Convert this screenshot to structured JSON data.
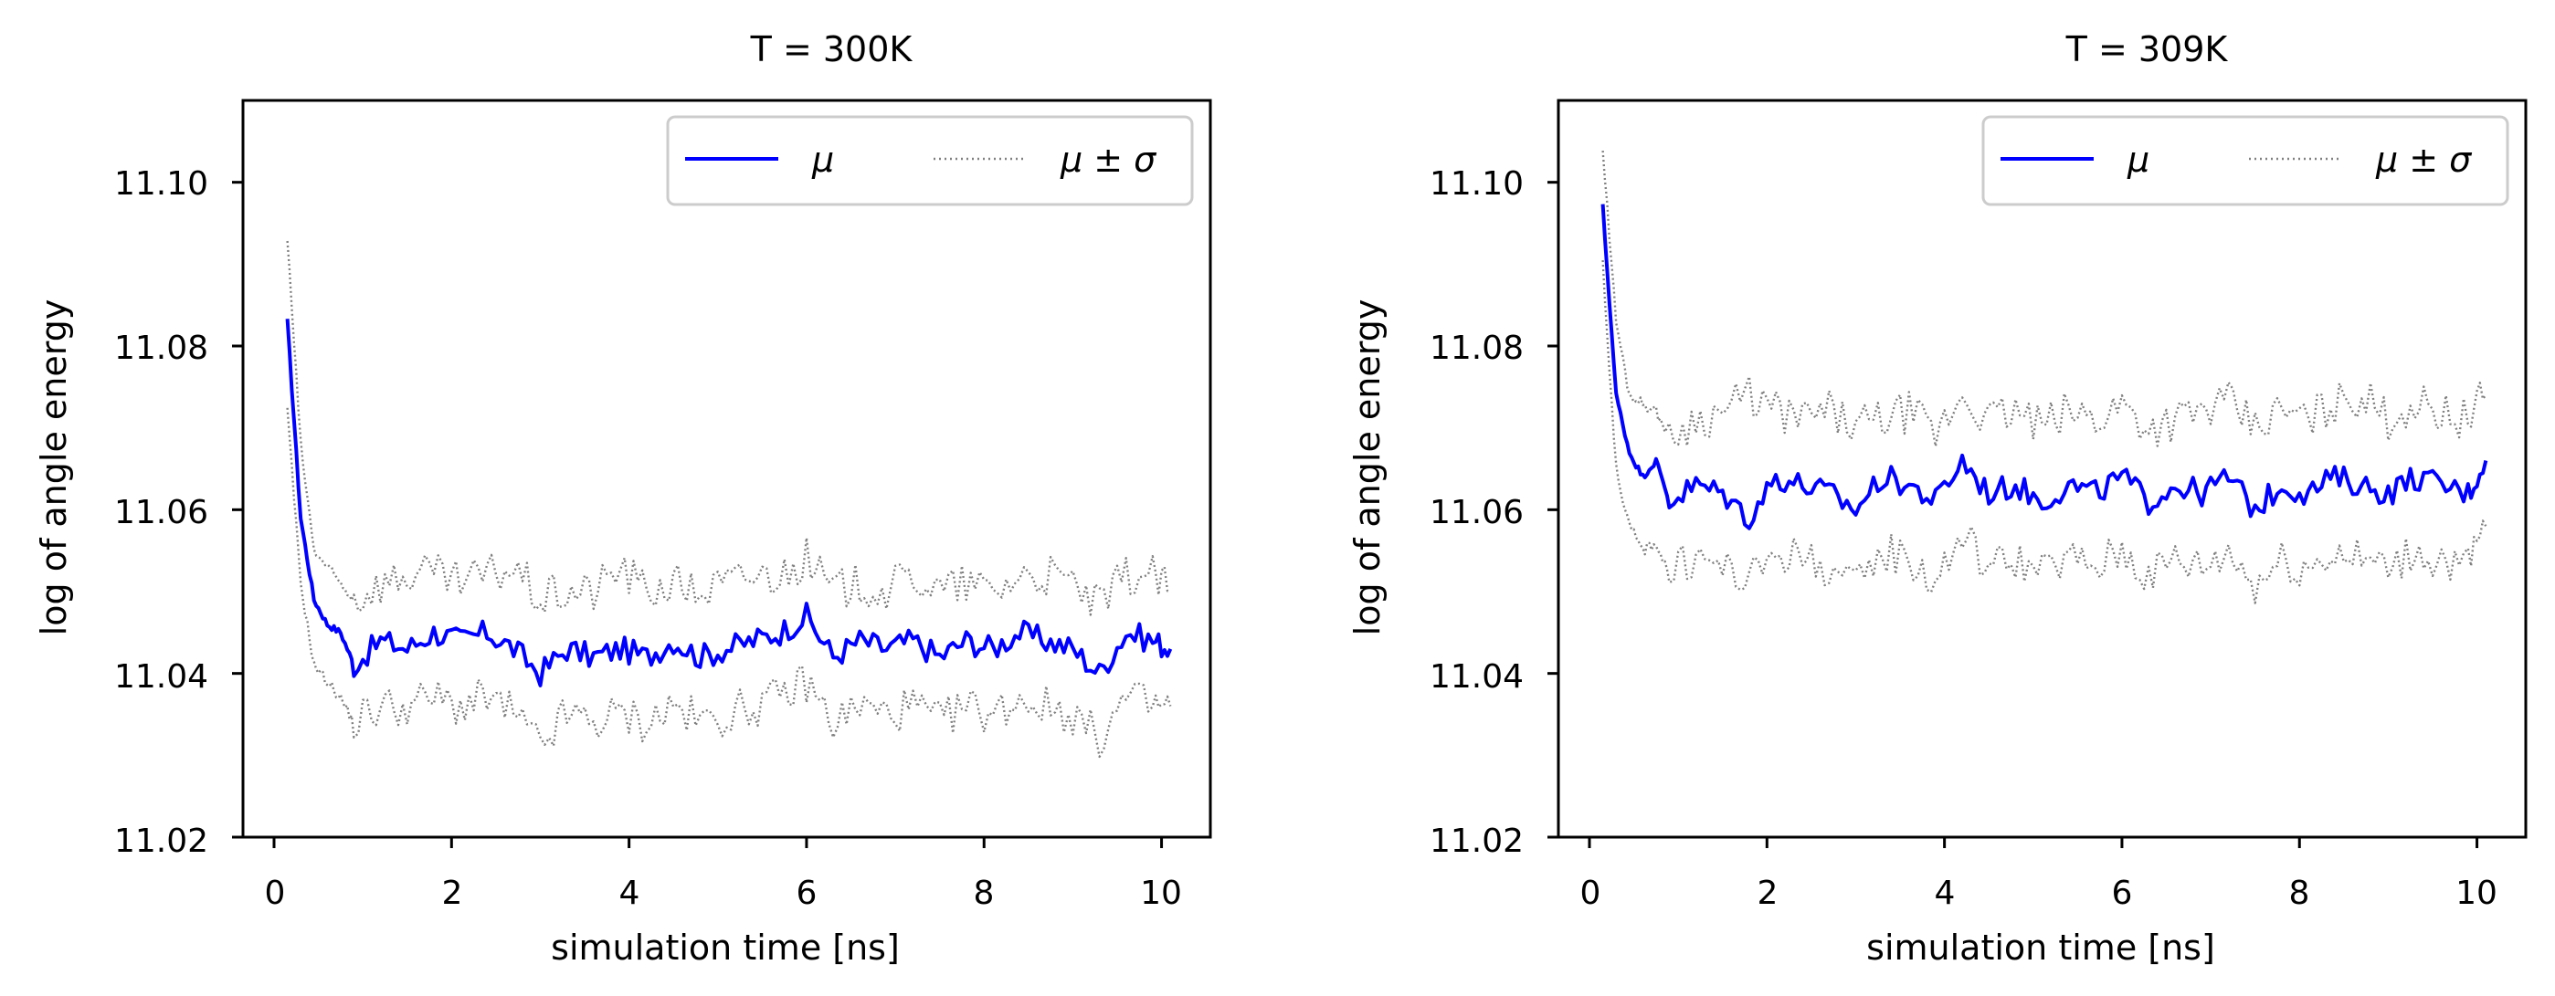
{
  "figure": {
    "series_colors": {
      "mean": "#0000ff",
      "band": "#808080"
    },
    "legend_symbols": {
      "mean": "μ",
      "band": "μ ± σ"
    }
  },
  "chart_data": [
    {
      "type": "line",
      "title": "T = 300K",
      "xlabel": "simulation time [ns]",
      "ylabel": "log of angle energy",
      "xlim": [
        -0.35,
        10.55
      ],
      "ylim": [
        11.02,
        11.11
      ],
      "xticks": [
        0,
        2,
        4,
        6,
        8,
        10
      ],
      "xtick_labels": [
        "0",
        "2",
        "4",
        "6",
        "8",
        "10"
      ],
      "yticks": [
        11.02,
        11.04,
        11.06,
        11.08,
        11.1
      ],
      "ytick_labels": [
        "11.02",
        "11.04",
        "11.06",
        "11.08",
        "11.10"
      ],
      "legend": {
        "location": "top-right",
        "entries": [
          "μ",
          "μ ± σ"
        ]
      },
      "x": [
        0.15,
        0.3,
        0.45,
        0.6,
        0.75,
        0.9,
        1.2,
        1.5,
        1.8,
        2.1,
        2.4,
        2.7,
        3.0,
        3.3,
        3.6,
        3.9,
        4.2,
        4.5,
        4.8,
        5.1,
        5.4,
        5.7,
        6.0,
        6.3,
        6.6,
        6.9,
        7.2,
        7.5,
        7.8,
        8.1,
        8.4,
        8.7,
        9.0,
        9.3,
        9.6,
        9.9,
        10.1
      ],
      "series": [
        {
          "name": "μ",
          "style": "solid",
          "values": [
            11.083,
            11.059,
            11.049,
            11.046,
            11.045,
            11.041,
            11.044,
            11.043,
            11.045,
            11.044,
            11.045,
            11.043,
            11.04,
            11.043,
            11.042,
            11.043,
            11.042,
            11.044,
            11.042,
            11.043,
            11.044,
            11.045,
            11.047,
            11.042,
            11.044,
            11.043,
            11.044,
            11.042,
            11.044,
            11.043,
            11.045,
            11.044,
            11.043,
            11.04,
            11.045,
            11.044,
            11.043
          ]
        },
        {
          "name": "μ + σ",
          "style": "dotted",
          "values": [
            11.093,
            11.068,
            11.055,
            11.053,
            11.051,
            11.049,
            11.051,
            11.052,
            11.052,
            11.051,
            11.052,
            11.053,
            11.049,
            11.05,
            11.05,
            11.053,
            11.05,
            11.051,
            11.05,
            11.051,
            11.052,
            11.052,
            11.054,
            11.05,
            11.051,
            11.05,
            11.052,
            11.05,
            11.051,
            11.05,
            11.052,
            11.052,
            11.051,
            11.048,
            11.052,
            11.052,
            11.05
          ]
        },
        {
          "name": "μ − σ",
          "style": "dotted",
          "values": [
            11.072,
            11.051,
            11.041,
            11.039,
            11.037,
            11.034,
            11.036,
            11.036,
            11.037,
            11.036,
            11.037,
            11.035,
            11.031,
            11.035,
            11.034,
            11.035,
            11.034,
            11.036,
            11.034,
            11.035,
            11.036,
            11.037,
            11.039,
            11.034,
            11.036,
            11.035,
            11.036,
            11.034,
            11.036,
            11.035,
            11.037,
            11.036,
            11.035,
            11.032,
            11.037,
            11.036,
            11.036
          ]
        }
      ]
    },
    {
      "type": "line",
      "title": "T = 309K",
      "xlabel": "simulation time [ns]",
      "ylabel": "log of angle energy",
      "xlim": [
        -0.35,
        10.55
      ],
      "ylim": [
        11.02,
        11.11
      ],
      "xticks": [
        0,
        2,
        4,
        6,
        8,
        10
      ],
      "xtick_labels": [
        "0",
        "2",
        "4",
        "6",
        "8",
        "10"
      ],
      "yticks": [
        11.02,
        11.04,
        11.06,
        11.08,
        11.1
      ],
      "ytick_labels": [
        "11.02",
        "11.04",
        "11.06",
        "11.08",
        "11.10"
      ],
      "legend": {
        "location": "top-right",
        "entries": [
          "μ",
          "μ ± σ"
        ]
      },
      "x": [
        0.15,
        0.3,
        0.45,
        0.6,
        0.75,
        0.9,
        1.2,
        1.5,
        1.8,
        2.1,
        2.4,
        2.7,
        3.0,
        3.3,
        3.6,
        3.9,
        4.2,
        4.5,
        4.8,
        5.1,
        5.4,
        5.7,
        6.0,
        6.3,
        6.6,
        6.9,
        7.2,
        7.5,
        7.8,
        8.1,
        8.4,
        8.7,
        9.0,
        9.3,
        9.6,
        9.9,
        10.1
      ],
      "series": [
        {
          "name": "μ",
          "style": "solid",
          "values": [
            11.097,
            11.074,
            11.067,
            11.064,
            11.066,
            11.061,
            11.063,
            11.062,
            11.059,
            11.064,
            11.063,
            11.062,
            11.06,
            11.064,
            11.063,
            11.061,
            11.066,
            11.062,
            11.063,
            11.061,
            11.063,
            11.062,
            11.064,
            11.061,
            11.063,
            11.062,
            11.064,
            11.06,
            11.063,
            11.062,
            11.064,
            11.063,
            11.062,
            11.064,
            11.063,
            11.062,
            11.066
          ]
        },
        {
          "name": "μ + σ",
          "style": "dotted",
          "values": [
            11.104,
            11.083,
            11.074,
            11.073,
            11.072,
            11.069,
            11.071,
            11.072,
            11.074,
            11.072,
            11.071,
            11.072,
            11.07,
            11.071,
            11.072,
            11.069,
            11.074,
            11.071,
            11.072,
            11.07,
            11.072,
            11.071,
            11.073,
            11.07,
            11.071,
            11.072,
            11.073,
            11.07,
            11.072,
            11.071,
            11.073,
            11.074,
            11.071,
            11.073,
            11.072,
            11.071,
            11.074
          ]
        },
        {
          "name": "μ − σ",
          "style": "dotted",
          "values": [
            11.09,
            11.065,
            11.058,
            11.055,
            11.056,
            11.052,
            11.054,
            11.053,
            11.051,
            11.055,
            11.054,
            11.053,
            11.05,
            11.055,
            11.054,
            11.051,
            11.057,
            11.053,
            11.054,
            11.052,
            11.054,
            11.053,
            11.055,
            11.052,
            11.054,
            11.053,
            11.055,
            11.051,
            11.054,
            11.053,
            11.055,
            11.054,
            11.053,
            11.055,
            11.054,
            11.053,
            11.058
          ]
        }
      ]
    }
  ]
}
